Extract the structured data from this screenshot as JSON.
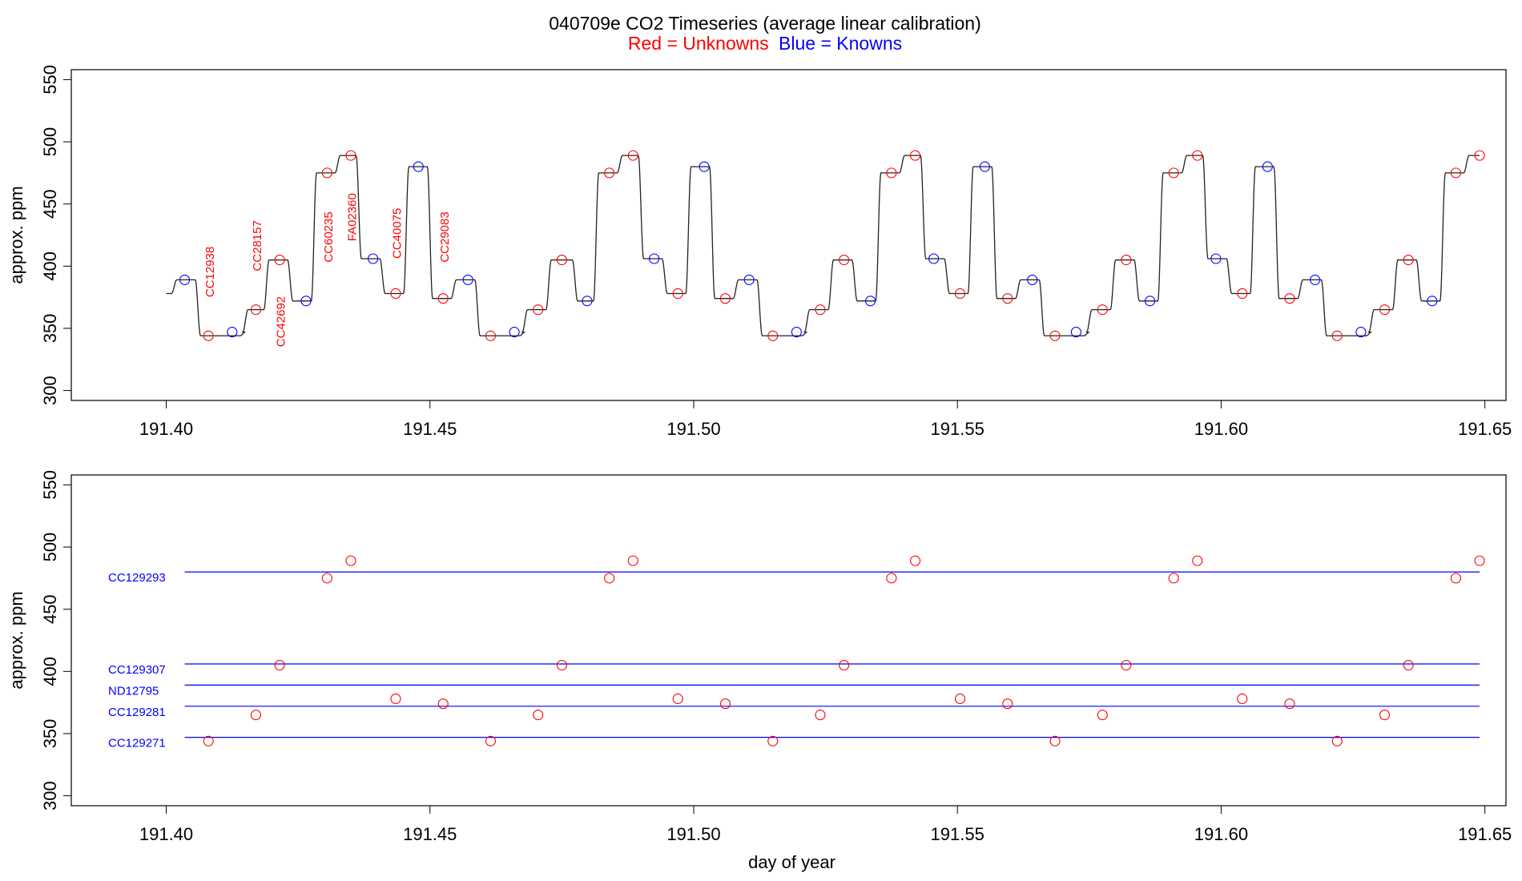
{
  "title": {
    "main": "040709e   CO2 Timeseries (average linear calibration)",
    "legend_red": "Red = Unknowns",
    "legend_blue": "Blue = Knowns"
  },
  "colors": {
    "unknown": "#ff0000",
    "known": "#0000ff",
    "trace": "#222222",
    "axis": "#000000"
  },
  "chart_data": [
    {
      "type": "line",
      "panel": "top",
      "title": "",
      "xlabel": "",
      "ylabel": "approx. ppm",
      "xlim": [
        191.382,
        191.654
      ],
      "ylim": [
        292,
        558
      ],
      "x_ticks": [
        "191.40",
        "191.45",
        "191.50",
        "191.55",
        "191.60",
        "191.65"
      ],
      "y_ticks": [
        "300",
        "350",
        "400",
        "450",
        "500",
        "550"
      ],
      "grid": false,
      "trace": {
        "name": "",
        "start": [
          191.4,
          378
        ],
        "steps": [
          [
            191.4015,
            389
          ],
          [
            191.406,
            344
          ],
          [
            191.4145,
            347
          ],
          [
            191.415,
            365
          ],
          [
            191.419,
            405
          ],
          [
            191.4235,
            372
          ],
          [
            191.428,
            475
          ],
          [
            191.4325,
            489
          ],
          [
            191.4365,
            406
          ],
          [
            191.441,
            378
          ],
          [
            191.4455,
            480
          ],
          [
            191.45,
            374
          ],
          [
            191.4545,
            389
          ],
          [
            191.459,
            344
          ],
          [
            191.4675,
            347
          ],
          [
            191.468,
            365
          ],
          [
            191.4725,
            405
          ],
          [
            191.4775,
            372
          ],
          [
            191.4815,
            475
          ],
          [
            191.486,
            489
          ],
          [
            191.49,
            406
          ],
          [
            191.4945,
            378
          ],
          [
            191.499,
            480
          ],
          [
            191.5035,
            374
          ],
          [
            191.508,
            389
          ],
          [
            191.5125,
            344
          ],
          [
            191.521,
            347
          ],
          [
            191.5215,
            365
          ],
          [
            191.526,
            405
          ],
          [
            191.5305,
            372
          ],
          [
            191.535,
            475
          ],
          [
            191.5395,
            489
          ],
          [
            191.5435,
            406
          ],
          [
            191.548,
            378
          ],
          [
            191.5525,
            480
          ],
          [
            191.557,
            374
          ],
          [
            191.5615,
            389
          ],
          [
            191.566,
            344
          ],
          [
            191.5745,
            347
          ],
          [
            191.575,
            365
          ],
          [
            191.5795,
            405
          ],
          [
            191.584,
            372
          ],
          [
            191.5885,
            475
          ],
          [
            191.593,
            489
          ],
          [
            191.597,
            406
          ],
          [
            191.6015,
            378
          ],
          [
            191.606,
            480
          ],
          [
            191.6105,
            374
          ],
          [
            191.615,
            389
          ],
          [
            191.6195,
            344
          ],
          [
            191.628,
            347
          ],
          [
            191.6285,
            365
          ],
          [
            191.633,
            405
          ],
          [
            191.6375,
            372
          ],
          [
            191.642,
            475
          ],
          [
            191.6465,
            489
          ]
        ],
        "end": 191.649
      },
      "series": [
        {
          "name": "",
          "color": "#0000ff",
          "x": [
            191.4035,
            191.4125,
            191.4265,
            191.4392,
            191.4478,
            191.4572,
            191.466,
            191.4798,
            191.4925,
            191.502,
            191.5105,
            191.5195,
            191.5335,
            191.5455,
            191.5552,
            191.5642,
            191.5725,
            191.5865,
            191.599,
            191.6088,
            191.6178,
            191.6265,
            191.64
          ],
          "y": [
            389,
            347,
            372,
            406,
            480,
            389,
            347,
            372,
            406,
            480,
            389,
            347,
            372,
            406,
            480,
            389,
            347,
            372,
            406,
            480,
            389,
            347,
            372
          ]
        },
        {
          "name": "",
          "color": "#ff0000",
          "x": [
            191.408,
            191.417,
            191.4215,
            191.4305,
            191.435,
            191.4435,
            191.4525,
            191.4615,
            191.4705,
            191.475,
            191.484,
            191.4885,
            191.497,
            191.506,
            191.515,
            191.524,
            191.5285,
            191.5375,
            191.542,
            191.5505,
            191.5595,
            191.5685,
            191.5775,
            191.582,
            191.591,
            191.5955,
            191.604,
            191.613,
            191.622,
            191.631,
            191.6355,
            191.6445,
            191.649
          ],
          "y": [
            344,
            365,
            405,
            475,
            489,
            378,
            374,
            344,
            365,
            405,
            475,
            489,
            378,
            374,
            344,
            365,
            405,
            475,
            489,
            378,
            374,
            344,
            365,
            405,
            475,
            489,
            378,
            374,
            344,
            365,
            405,
            475,
            489
          ]
        }
      ],
      "annotations": [
        {
          "text": "CC12938",
          "x": 191.409,
          "y": 375
        },
        {
          "text": "CC28157",
          "x": 191.418,
          "y": 396
        },
        {
          "text": "CC42692",
          "x": 191.4225,
          "y": 335
        },
        {
          "text": "CC60235",
          "x": 191.4315,
          "y": 403
        },
        {
          "text": "FA02360",
          "x": 191.436,
          "y": 420
        },
        {
          "text": "CC40075",
          "x": 191.4445,
          "y": 406
        },
        {
          "text": "CC29083",
          "x": 191.4535,
          "y": 403
        }
      ]
    },
    {
      "type": "scatter",
      "panel": "bottom",
      "title": "",
      "xlabel": "day of year",
      "ylabel": "approx. ppm",
      "xlim": [
        191.382,
        191.654
      ],
      "ylim": [
        292,
        558
      ],
      "x_ticks": [
        "191.40",
        "191.45",
        "191.50",
        "191.55",
        "191.60",
        "191.65"
      ],
      "y_ticks": [
        "300",
        "350",
        "400",
        "450",
        "500",
        "550"
      ],
      "grid": false,
      "reference_lines": [
        {
          "label": "CC129293",
          "value": 480,
          "color": "#0000ff"
        },
        {
          "label": "CC129307",
          "value": 406,
          "color": "#0000ff"
        },
        {
          "label": "ND12795",
          "value": 389,
          "color": "#0000ff"
        },
        {
          "label": "CC129281",
          "value": 372,
          "color": "#0000ff"
        },
        {
          "label": "CC129271",
          "value": 347,
          "color": "#0000ff"
        }
      ],
      "reference_x_range": [
        191.4035,
        191.649
      ],
      "series": [
        {
          "name": "",
          "color": "#ff0000",
          "x": [
            191.408,
            191.417,
            191.4215,
            191.4305,
            191.435,
            191.4435,
            191.4525,
            191.4615,
            191.4705,
            191.475,
            191.484,
            191.4885,
            191.497,
            191.506,
            191.515,
            191.524,
            191.5285,
            191.5375,
            191.542,
            191.5505,
            191.5595,
            191.5685,
            191.5775,
            191.582,
            191.591,
            191.5955,
            191.604,
            191.613,
            191.622,
            191.631,
            191.6355,
            191.6445,
            191.649
          ],
          "y": [
            344,
            365,
            405,
            475,
            489,
            378,
            374,
            344,
            365,
            405,
            475,
            489,
            378,
            374,
            344,
            365,
            405,
            475,
            489,
            378,
            374,
            344,
            365,
            405,
            475,
            489,
            378,
            374,
            344,
            365,
            405,
            475,
            489
          ]
        }
      ]
    }
  ]
}
